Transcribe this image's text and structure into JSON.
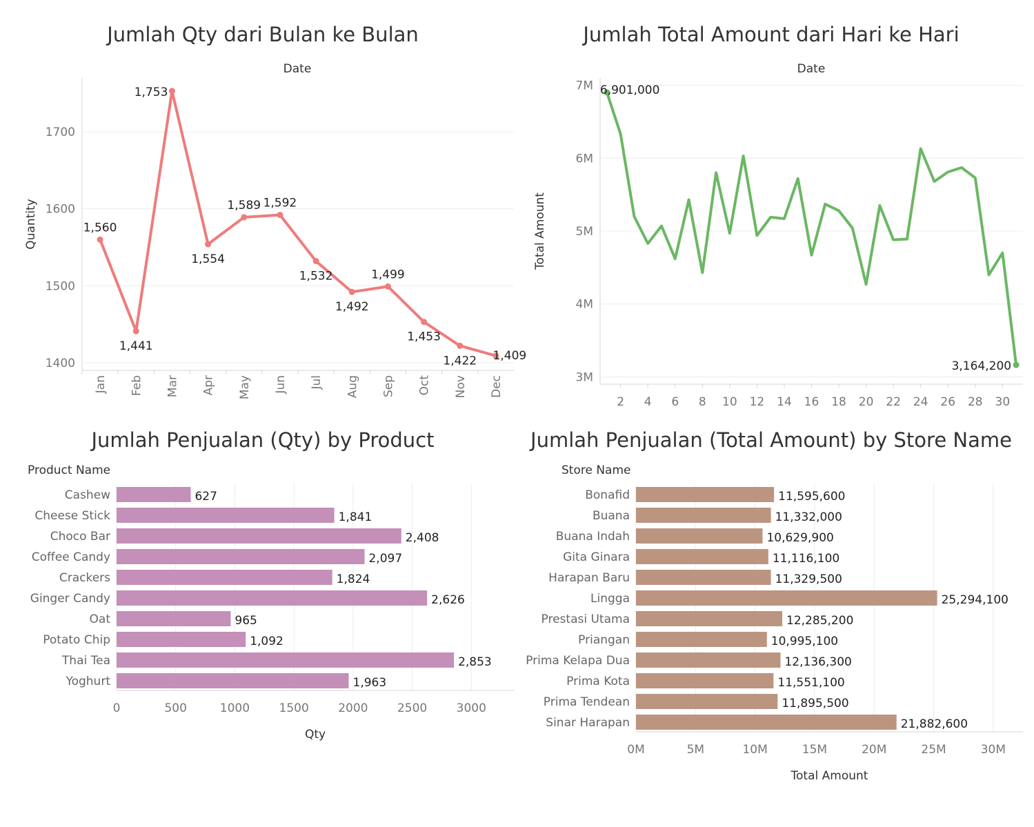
{
  "chart_data": [
    {
      "type": "line",
      "title": "Jumlah Qty dari Bulan ke Bulan",
      "header": "Date",
      "ylabel": "Quantity",
      "color": "#ef7b7b",
      "categories": [
        "Jan",
        "Feb",
        "Mar",
        "Apr",
        "May",
        "Jun",
        "Jul",
        "Aug",
        "Sep",
        "Oct",
        "Nov",
        "Dec"
      ],
      "values": [
        1560,
        1441,
        1753,
        1554,
        1589,
        1592,
        1532,
        1492,
        1499,
        1453,
        1422,
        1409
      ],
      "data_labels": [
        "1,560",
        "1,441",
        "1,753",
        "1,554",
        "1,589",
        "1,592",
        "1,532",
        "1,492",
        "1,499",
        "1,453",
        "1,422",
        "1,409"
      ],
      "yticks": [
        1400,
        1500,
        1600,
        1700
      ],
      "ylim": [
        1390,
        1770
      ],
      "grid": true
    },
    {
      "type": "line",
      "title": "Jumlah Total Amount dari Hari ke Hari",
      "header": "Date",
      "ylabel": "Total Amount",
      "color": "#6bb764",
      "x": [
        1,
        2,
        3,
        4,
        5,
        6,
        7,
        8,
        9,
        10,
        11,
        12,
        13,
        14,
        15,
        16,
        17,
        18,
        19,
        20,
        21,
        22,
        23,
        24,
        25,
        26,
        27,
        28,
        29,
        30,
        31
      ],
      "values": [
        6901000,
        6330000,
        5200000,
        4830000,
        5070000,
        4620000,
        5430000,
        4430000,
        5800000,
        4970000,
        6030000,
        4940000,
        5190000,
        5170000,
        5720000,
        4670000,
        5370000,
        5280000,
        5040000,
        4270000,
        5350000,
        4880000,
        4890000,
        6130000,
        5680000,
        5810000,
        5870000,
        5730000,
        4400000,
        4700000,
        3164200
      ],
      "annotations": [
        {
          "x": 1,
          "label": "6,901,000"
        },
        {
          "x": 31,
          "label": "3,164,200"
        }
      ],
      "xticks": [
        2,
        4,
        6,
        8,
        10,
        12,
        14,
        16,
        18,
        20,
        22,
        24,
        26,
        28,
        30
      ],
      "yticks": [
        3000000,
        4000000,
        5000000,
        6000000,
        7000000
      ],
      "ytick_labels": [
        "3M",
        "4M",
        "5M",
        "6M",
        "7M"
      ],
      "xlim": [
        0.5,
        31.5
      ],
      "ylim": [
        2900000,
        7100000
      ],
      "grid": true
    },
    {
      "type": "bar",
      "orientation": "horizontal",
      "title": "Jumlah Penjualan (Qty) by Product",
      "header": "Product Name",
      "xlabel": "Qty",
      "color": "#c48fb8",
      "categories": [
        "Cashew",
        "Cheese Stick",
        "Choco Bar",
        "Coffee Candy",
        "Crackers",
        "Ginger Candy",
        "Oat",
        "Potato Chip",
        "Thai Tea",
        "Yoghurt"
      ],
      "values": [
        627,
        1841,
        2408,
        2097,
        1824,
        2626,
        965,
        1092,
        2853,
        1963
      ],
      "data_labels": [
        "627",
        "1,841",
        "2,408",
        "2,097",
        "1,824",
        "2,626",
        "965",
        "1,092",
        "2,853",
        "1,963"
      ],
      "xticks": [
        0,
        500,
        1000,
        1500,
        2000,
        2500,
        3000
      ],
      "xtick_labels": [
        "0",
        "500",
        "1000",
        "1500",
        "2000",
        "2500",
        "3000"
      ],
      "xlim": [
        0,
        3360
      ],
      "grid": true
    },
    {
      "type": "bar",
      "orientation": "horizontal",
      "title": "Jumlah Penjualan (Total Amount) by Store Name",
      "header": "Store Name",
      "xlabel": "Total Amount",
      "color": "#bb9580",
      "categories": [
        "Bonafid",
        "Buana",
        "Buana Indah",
        "Gita Ginara",
        "Harapan Baru",
        "Lingga",
        "Prestasi Utama",
        "Priangan",
        "Prima Kelapa Dua",
        "Prima Kota",
        "Prima Tendean",
        "Sinar Harapan"
      ],
      "values": [
        11595600,
        11332000,
        10629900,
        11116100,
        11329500,
        25294100,
        12285200,
        10995100,
        12136300,
        11551100,
        11895500,
        21882600
      ],
      "data_labels": [
        "11,595,600",
        "11,332,000",
        "10,629,900",
        "11,116,100",
        "11,329,500",
        "25,294,100",
        "12,285,200",
        "10,995,100",
        "12,136,300",
        "11,551,100",
        "11,895,500",
        "21,882,600"
      ],
      "xticks": [
        0,
        5000000,
        10000000,
        15000000,
        20000000,
        25000000,
        30000000
      ],
      "xtick_labels": [
        "0M",
        "5M",
        "10M",
        "15M",
        "20M",
        "25M",
        "30M"
      ],
      "xlim": [
        0,
        32500000
      ],
      "grid": true
    }
  ]
}
